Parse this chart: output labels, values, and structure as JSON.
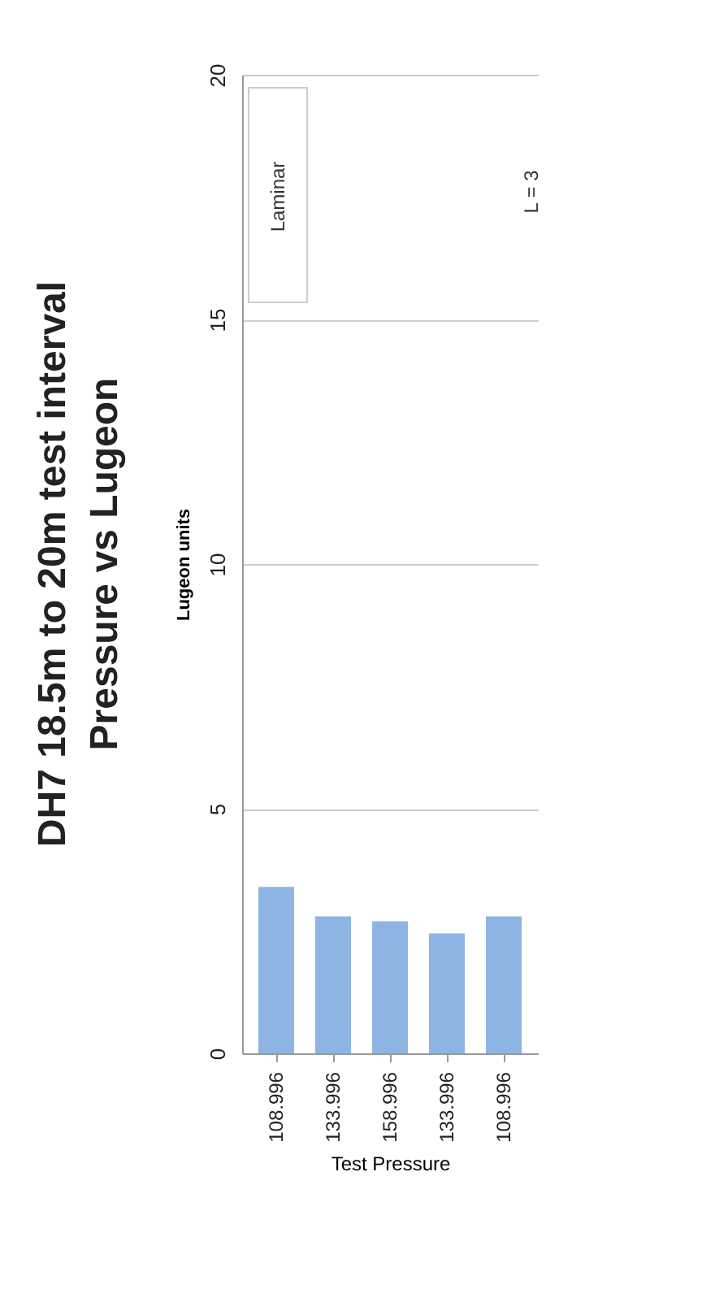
{
  "chart_data": {
    "type": "bar",
    "title": "DH7 18.5m to 20m test interval",
    "subtitle": "Pressure vs Lugeon",
    "xlabel": "Test Pressure",
    "ylabel": "Lugeon units",
    "categories": [
      "108.996",
      "133.996",
      "158.996",
      "133.996",
      "108.996"
    ],
    "values": [
      3.4,
      2.8,
      2.7,
      2.45,
      2.8
    ],
    "color": "#8eb4e3",
    "ylim": [
      0,
      20
    ],
    "yticks": [
      0,
      5,
      10,
      15,
      20
    ],
    "grid": "y",
    "annotations": [
      "Laminar",
      "L = 3"
    ]
  }
}
